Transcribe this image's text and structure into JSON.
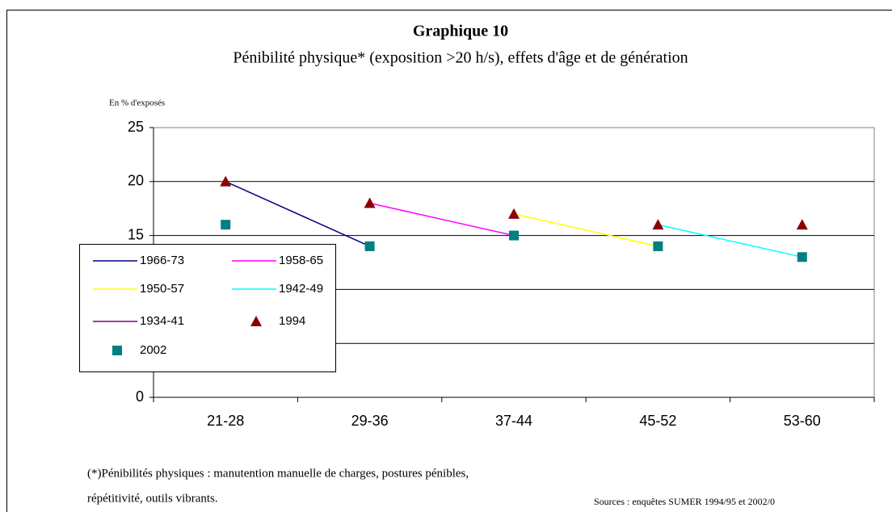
{
  "chart_data": {
    "type": "line",
    "title": "Graphique 10",
    "subtitle": "Pénibilité physique* (exposition >20 h/s), effets d'âge et de génération",
    "y_label": "En % d'exposés",
    "categories": [
      "21-28",
      "29-36",
      "37-44",
      "45-52",
      "53-60"
    ],
    "ylim": [
      0,
      25
    ],
    "yticks": [
      0,
      5,
      10,
      15,
      20,
      25
    ],
    "grid": true,
    "legend": "left",
    "series": [
      {
        "name": "1966-73",
        "color": "#000080",
        "style": "line",
        "values": [
          20,
          14,
          null,
          null,
          null
        ]
      },
      {
        "name": "1958-65",
        "color": "#ff00ff",
        "style": "line",
        "values": [
          null,
          18,
          15,
          null,
          null
        ]
      },
      {
        "name": "1950-57",
        "color": "#ffff00",
        "style": "line",
        "values": [
          null,
          null,
          17,
          14,
          null
        ]
      },
      {
        "name": "1942-49",
        "color": "#00ffff",
        "style": "line",
        "values": [
          null,
          null,
          null,
          16,
          13
        ]
      },
      {
        "name": "1934-41",
        "color": "#800080",
        "style": "line",
        "values": [
          null,
          null,
          null,
          null,
          null
        ]
      },
      {
        "name": "1994",
        "color": "#8b0000",
        "style": "marker",
        "marker": "triangle",
        "values": [
          20,
          18,
          17,
          16,
          16
        ]
      },
      {
        "name": "2002",
        "color": "#008080",
        "style": "marker",
        "marker": "square",
        "values": [
          16,
          14,
          15,
          14,
          13
        ]
      }
    ],
    "footnote": [
      "(*)Pénibilités physiques : manutention manuelle de charges, postures pénibles,",
      "répétitivité, outils vibrants."
    ],
    "source": "Sources : enquêtes SUMER 1994/95 et 2002/0"
  }
}
